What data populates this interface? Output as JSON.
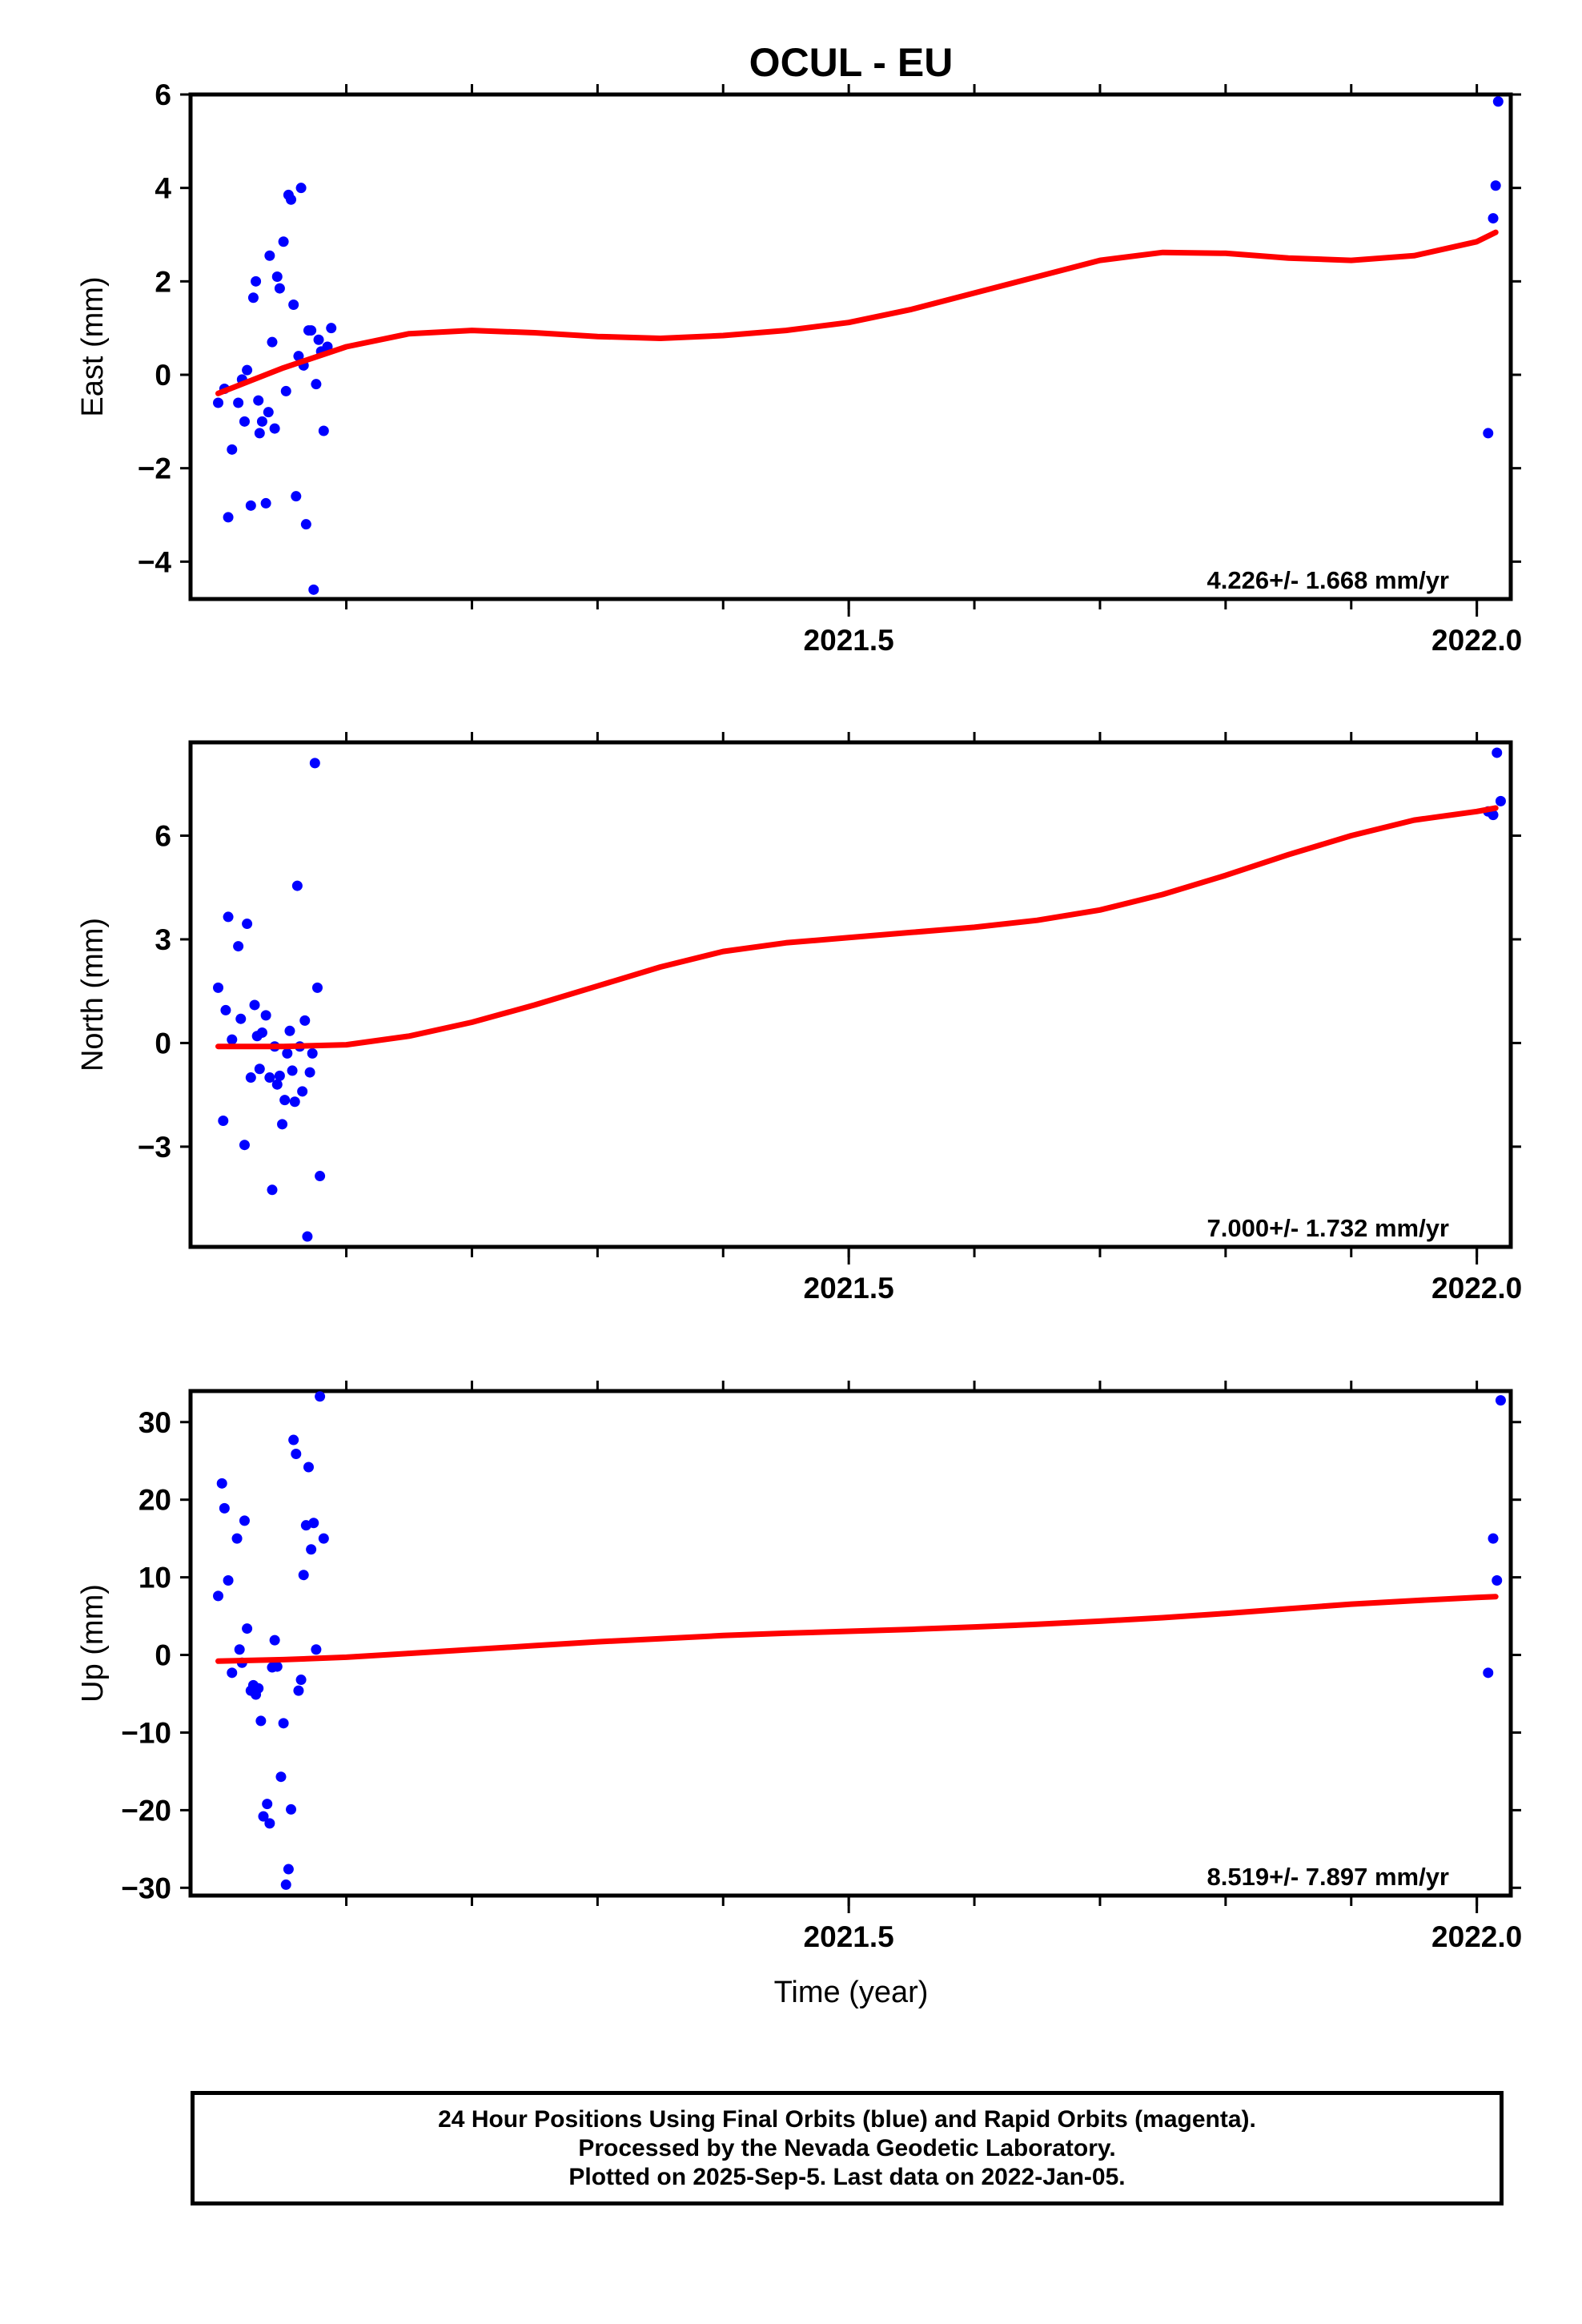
{
  "figure": {
    "title": "OCUL - EU",
    "xlabel": "Time (year)"
  },
  "chart_data": [
    {
      "type": "scatter",
      "component": "East",
      "ylabel": "East (mm)",
      "xlim": [
        2020.976,
        2022.027
      ],
      "ylim": [
        -4.8,
        6.0
      ],
      "yticks": [
        -4,
        -2,
        0,
        2,
        4,
        6
      ],
      "xticks": [
        2021.5,
        2022.0
      ],
      "rate_label": "4.226+/- 1.668 mm/yr",
      "series": [
        {
          "name": "Final Orbits",
          "color": "#0000ff",
          "x": [
            2020.998,
            2021.003,
            2021.006,
            2021.009,
            2021.014,
            2021.017,
            2021.019,
            2021.021,
            2021.024,
            2021.026,
            2021.028,
            2021.03,
            2021.031,
            2021.033,
            2021.036,
            2021.038,
            2021.039,
            2021.041,
            2021.043,
            2021.045,
            2021.047,
            2021.05,
            2021.052,
            2021.054,
            2021.056,
            2021.058,
            2021.06,
            2021.062,
            2021.064,
            2021.066,
            2021.068,
            2021.07,
            2021.072,
            2021.074,
            2021.076,
            2021.078,
            2021.08,
            2021.082,
            2021.085,
            2021.088,
            2022.009,
            2022.013,
            2022.015,
            2022.017
          ],
          "y": [
            -0.6,
            -0.3,
            -3.05,
            -1.6,
            -0.6,
            -0.1,
            -1.0,
            0.1,
            -2.8,
            1.65,
            2.0,
            -0.55,
            -1.25,
            -1.0,
            -2.75,
            -0.8,
            2.55,
            0.7,
            -1.15,
            2.1,
            1.85,
            2.85,
            -0.35,
            3.85,
            3.75,
            1.5,
            -2.6,
            0.4,
            4.0,
            0.2,
            -3.2,
            0.95,
            0.95,
            -4.6,
            -0.2,
            0.75,
            0.5,
            -1.2,
            0.6,
            1.0,
            -1.25,
            3.35,
            4.05,
            5.85
          ]
        },
        {
          "name": "Fit",
          "color": "#ff0000",
          "x": [
            2020.998,
            2021.05,
            2021.1,
            2021.15,
            2021.2,
            2021.25,
            2021.3,
            2021.35,
            2021.4,
            2021.45,
            2021.5,
            2021.55,
            2021.6,
            2021.65,
            2021.7,
            2021.75,
            2021.8,
            2021.85,
            2021.9,
            2021.95,
            2022.0,
            2022.015
          ],
          "y": [
            -0.4,
            0.15,
            0.6,
            0.88,
            0.95,
            0.9,
            0.82,
            0.78,
            0.84,
            0.95,
            1.12,
            1.4,
            1.75,
            2.1,
            2.45,
            2.62,
            2.6,
            2.5,
            2.45,
            2.55,
            2.85,
            3.05
          ]
        }
      ]
    },
    {
      "type": "scatter",
      "component": "North",
      "ylabel": "North (mm)",
      "xlim": [
        2020.976,
        2022.027
      ],
      "ylim": [
        -5.9,
        8.7
      ],
      "yticks": [
        -3,
        0,
        3,
        6
      ],
      "xticks": [
        2021.5,
        2022.0
      ],
      "rate_label": "7.000+/- 1.732 mm/yr",
      "series": [
        {
          "name": "Final Orbits",
          "color": "#0000ff",
          "x": [
            2020.998,
            2021.002,
            2021.004,
            2021.006,
            2021.009,
            2021.014,
            2021.016,
            2021.019,
            2021.021,
            2021.024,
            2021.027,
            2021.029,
            2021.031,
            2021.033,
            2021.036,
            2021.039,
            2021.041,
            2021.043,
            2021.045,
            2021.047,
            2021.049,
            2021.051,
            2021.053,
            2021.055,
            2021.057,
            2021.059,
            2021.061,
            2021.063,
            2021.065,
            2021.067,
            2021.069,
            2021.071,
            2021.073,
            2021.075,
            2021.077,
            2021.079,
            2022.009,
            2022.013,
            2022.016,
            2022.019
          ],
          "y": [
            1.6,
            -2.25,
            0.95,
            3.65,
            0.1,
            2.8,
            0.7,
            -2.95,
            3.45,
            -1.0,
            1.1,
            0.2,
            -0.75,
            0.3,
            0.8,
            -1.0,
            -4.25,
            -0.1,
            -1.2,
            -0.95,
            -2.35,
            -1.65,
            -0.3,
            0.35,
            -0.8,
            -1.7,
            4.55,
            -0.1,
            -1.4,
            0.65,
            -5.6,
            -0.85,
            -0.3,
            8.1,
            1.6,
            -3.85,
            6.7,
            6.6,
            8.4,
            7.0
          ]
        },
        {
          "name": "Fit",
          "color": "#ff0000",
          "x": [
            2020.998,
            2021.05,
            2021.1,
            2021.15,
            2021.2,
            2021.25,
            2021.3,
            2021.35,
            2021.4,
            2021.45,
            2021.5,
            2021.55,
            2021.6,
            2021.65,
            2021.7,
            2021.75,
            2021.8,
            2021.85,
            2021.9,
            2021.95,
            2022.0,
            2022.015
          ],
          "y": [
            -0.1,
            -0.1,
            -0.05,
            0.2,
            0.6,
            1.1,
            1.65,
            2.2,
            2.65,
            2.9,
            3.05,
            3.2,
            3.35,
            3.55,
            3.85,
            4.3,
            4.85,
            5.45,
            6.0,
            6.45,
            6.7,
            6.8
          ]
        }
      ]
    },
    {
      "type": "scatter",
      "component": "Up",
      "ylabel": "Up (mm)",
      "xlim": [
        2020.976,
        2022.027
      ],
      "ylim": [
        -31.0,
        34.0
      ],
      "yticks": [
        -30,
        -20,
        -10,
        0,
        10,
        20,
        30
      ],
      "xticks": [
        2021.5,
        2022.0
      ],
      "rate_label": "8.519+/- 7.897 mm/yr",
      "series": [
        {
          "name": "Final Orbits",
          "color": "#0000ff",
          "x": [
            2020.998,
            2021.001,
            2021.003,
            2021.006,
            2021.009,
            2021.013,
            2021.015,
            2021.017,
            2021.019,
            2021.021,
            2021.024,
            2021.026,
            2021.028,
            2021.03,
            2021.032,
            2021.034,
            2021.037,
            2021.039,
            2021.041,
            2021.043,
            2021.045,
            2021.048,
            2021.05,
            2021.052,
            2021.054,
            2021.056,
            2021.058,
            2021.06,
            2021.062,
            2021.064,
            2021.066,
            2021.068,
            2021.07,
            2021.072,
            2021.074,
            2021.076,
            2021.079,
            2021.082,
            2022.009,
            2022.013,
            2022.016,
            2022.019
          ],
          "y": [
            7.6,
            22.1,
            18.9,
            9.6,
            -2.3,
            15.0,
            0.7,
            -1.0,
            17.3,
            3.4,
            -4.6,
            -3.9,
            -5.1,
            -4.3,
            -8.5,
            -20.8,
            -19.2,
            -21.7,
            -1.6,
            1.9,
            -1.5,
            -15.7,
            -8.8,
            -29.6,
            -27.6,
            -19.9,
            27.7,
            25.9,
            -4.6,
            -3.2,
            10.3,
            16.7,
            24.2,
            13.6,
            17.0,
            0.7,
            33.3,
            15.0,
            -2.3,
            15.0,
            9.6,
            32.8
          ]
        },
        {
          "name": "Fit",
          "color": "#ff0000",
          "x": [
            2020.998,
            2021.05,
            2021.1,
            2021.15,
            2021.2,
            2021.25,
            2021.3,
            2021.35,
            2021.4,
            2021.45,
            2021.5,
            2021.55,
            2021.6,
            2021.65,
            2021.7,
            2021.75,
            2021.8,
            2021.85,
            2021.9,
            2021.95,
            2022.0,
            2022.015
          ],
          "y": [
            -0.8,
            -0.6,
            -0.3,
            0.2,
            0.7,
            1.2,
            1.7,
            2.1,
            2.5,
            2.8,
            3.05,
            3.3,
            3.6,
            3.95,
            4.35,
            4.8,
            5.35,
            5.95,
            6.55,
            7.0,
            7.4,
            7.5
          ]
        }
      ]
    }
  ],
  "caption": {
    "line1": "24 Hour Positions Using Final Orbits (blue) and Rapid Orbits (magenta).",
    "line2": "Processed by the Nevada Geodetic Laboratory.",
    "line3": "Plotted on 2025-Sep-5. Last data on 2022-Jan-05."
  }
}
